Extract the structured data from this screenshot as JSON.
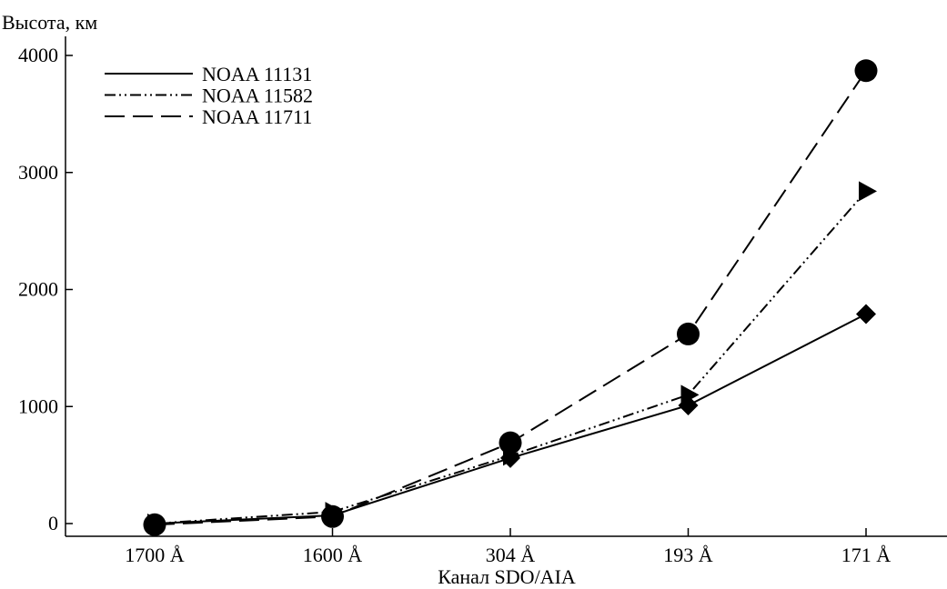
{
  "chart_data": {
    "type": "line",
    "title": "",
    "ylabel": "Высота, км",
    "xlabel": "Канал SDO/AIA",
    "categories": [
      "1700 Å",
      "1600 Å",
      "304 Å",
      "193 Å",
      "171 Å"
    ],
    "ylim": [
      -100,
      4100
    ],
    "yticks": [
      0,
      1000,
      2000,
      3000,
      4000
    ],
    "grid": false,
    "legend_position": "top-left",
    "series": [
      {
        "name": "NOAA 11131",
        "line_style": "solid",
        "marker": "diamond",
        "values": [
          0,
          70,
          560,
          1010,
          1790
        ]
      },
      {
        "name": "NOAA 11582",
        "line_style": "dash-dot-dot",
        "marker": "triangle-right",
        "values": [
          0,
          100,
          580,
          1100,
          2840
        ]
      },
      {
        "name": "NOAA 11711",
        "line_style": "dashed",
        "marker": "circle",
        "values": [
          -10,
          60,
          690,
          1620,
          3870
        ]
      }
    ]
  }
}
